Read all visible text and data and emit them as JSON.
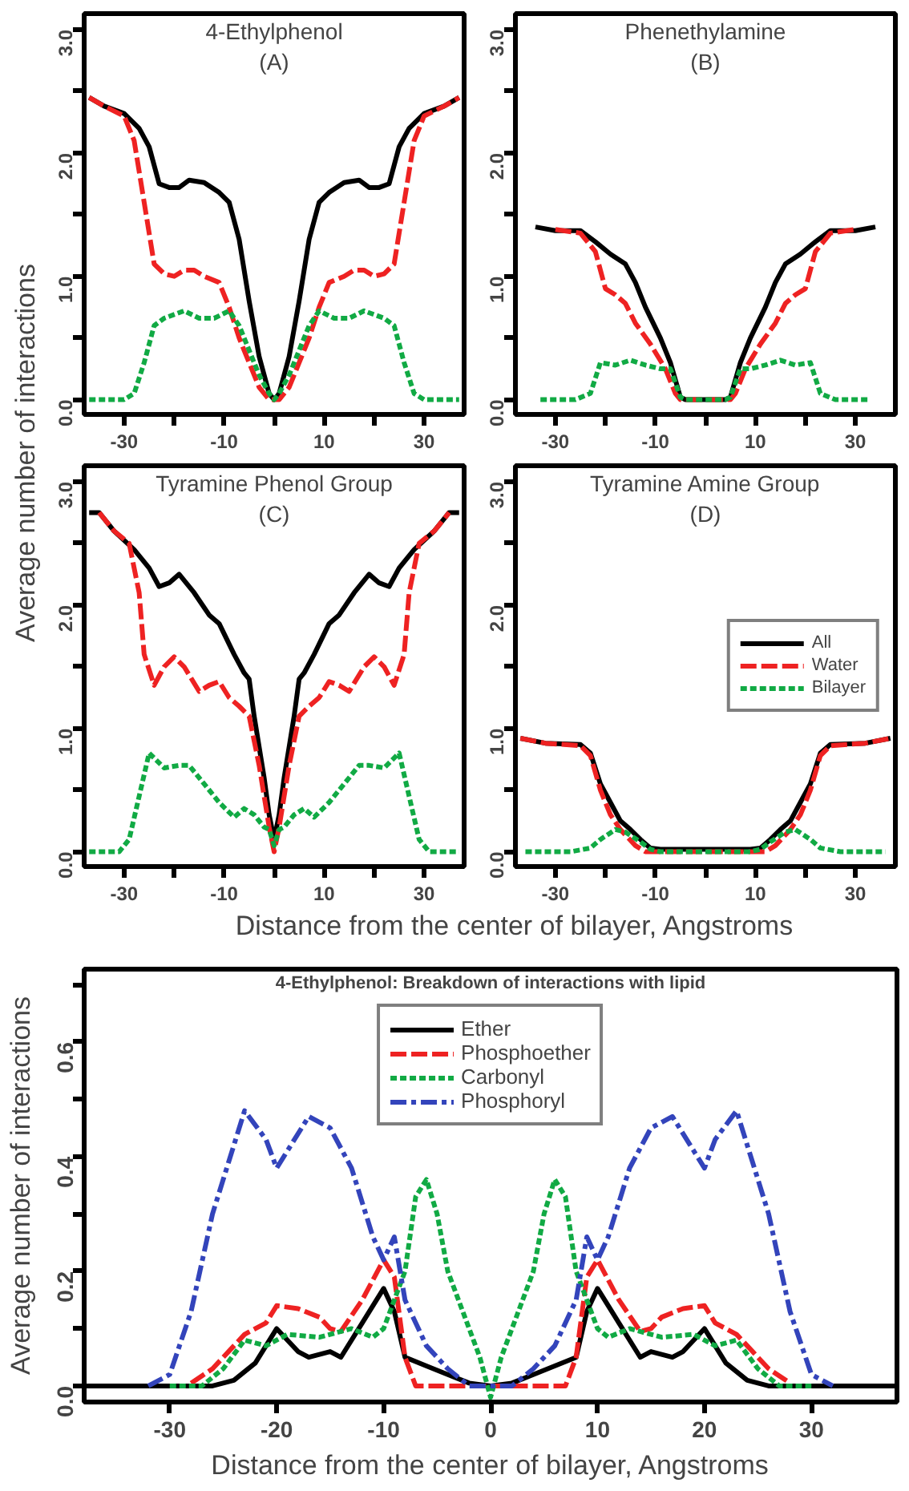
{
  "chart_data": [
    {
      "type": "line",
      "title": "4-Ethylphenol\n(A)",
      "ylabel": "Average number of interactions",
      "xlim": [
        -38,
        38
      ],
      "ylim": [
        -0.12,
        3.13
      ],
      "xticks": [
        -30,
        {
          "value": -20,
          "label": null
        },
        -10,
        {
          "value": 0,
          "label": null
        },
        10,
        {
          "value": 20,
          "label": null
        },
        30
      ],
      "yticks": [
        {
          "value": 0,
          "label": "0.0"
        },
        {
          "value": 0.5,
          "label": null
        },
        {
          "value": 1,
          "label": "1.0"
        },
        {
          "value": 1.5,
          "label": null
        },
        {
          "value": 2,
          "label": "2.0"
        },
        {
          "value": 2.5,
          "label": null
        },
        {
          "value": 3,
          "label": "3.0"
        }
      ],
      "series": [
        {
          "color": "#000000",
          "line_style": "solid",
          "x": [
            -37,
            -34,
            -30,
            -27,
            -25,
            -23,
            -21,
            -19,
            -17,
            -14,
            -11,
            -9,
            -7,
            -5,
            -3,
            -1,
            0,
            1,
            3,
            5,
            7,
            9,
            11,
            14,
            17,
            19,
            21,
            23,
            25,
            27,
            30,
            34,
            37
          ],
          "values": [
            2.45,
            2.38,
            2.32,
            2.2,
            2.05,
            1.75,
            1.72,
            1.72,
            1.78,
            1.76,
            1.68,
            1.6,
            1.3,
            0.8,
            0.35,
            0.05,
            0,
            0.05,
            0.35,
            0.8,
            1.3,
            1.6,
            1.68,
            1.76,
            1.78,
            1.72,
            1.72,
            1.75,
            2.05,
            2.2,
            2.32,
            2.38,
            2.45
          ]
        },
        {
          "color": "#ee2222",
          "line_style": "dashed",
          "x": [
            -37,
            -34,
            -30,
            -28,
            -26,
            -24,
            -22,
            -20,
            -18,
            -16,
            -14,
            -11,
            -9,
            -7,
            -5,
            -3,
            -1,
            0,
            1,
            3,
            5,
            7,
            9,
            11,
            14,
            16,
            18,
            20,
            22,
            24,
            26,
            28,
            30,
            34,
            37
          ],
          "values": [
            2.45,
            2.38,
            2.3,
            2.1,
            1.6,
            1.1,
            1.02,
            1.0,
            1.05,
            1.05,
            1.0,
            0.95,
            0.75,
            0.5,
            0.3,
            0.1,
            0.0,
            0,
            0.0,
            0.1,
            0.3,
            0.5,
            0.75,
            0.95,
            1.0,
            1.05,
            1.05,
            1.0,
            1.02,
            1.1,
            1.6,
            2.1,
            2.3,
            2.38,
            2.45
          ]
        },
        {
          "color": "#11aa44",
          "line_style": "dotted",
          "x": [
            -37,
            -30,
            -28,
            -26,
            -24,
            -22,
            -18,
            -15,
            -12,
            -9,
            -7,
            -5,
            -3,
            -1,
            0,
            1,
            3,
            5,
            7,
            9,
            12,
            15,
            18,
            22,
            24,
            26,
            28,
            30,
            37
          ],
          "values": [
            0,
            0,
            0.05,
            0.3,
            0.6,
            0.66,
            0.72,
            0.66,
            0.66,
            0.72,
            0.6,
            0.4,
            0.2,
            0.05,
            0,
            0.05,
            0.2,
            0.4,
            0.6,
            0.72,
            0.66,
            0.66,
            0.72,
            0.66,
            0.6,
            0.3,
            0.05,
            0,
            0
          ]
        }
      ]
    },
    {
      "type": "line",
      "title": "Phenethylamine\n(B)",
      "xlim": [
        -38,
        38
      ],
      "ylim": [
        -0.12,
        3.13
      ],
      "xticks": [
        -30,
        {
          "value": -20,
          "label": null
        },
        -10,
        {
          "value": 0,
          "label": null
        },
        10,
        {
          "value": 20,
          "label": null
        },
        30
      ],
      "yticks": [
        {
          "value": 0,
          "label": "0.0"
        },
        {
          "value": 0.5,
          "label": null
        },
        {
          "value": 1,
          "label": "1.0"
        },
        {
          "value": 1.5,
          "label": null
        },
        {
          "value": 2,
          "label": "2.0"
        },
        {
          "value": 2.5,
          "label": null
        },
        {
          "value": 3,
          "label": "3.0"
        }
      ],
      "series": [
        {
          "color": "#000000",
          "line_style": "solid",
          "x": [
            -34,
            -30,
            -25,
            -22,
            -19,
            -16,
            -14,
            -12,
            -9,
            -7,
            -5,
            -4,
            0,
            4,
            5,
            7,
            9,
            12,
            14,
            16,
            19,
            22,
            25,
            30,
            34
          ],
          "values": [
            1.4,
            1.37,
            1.37,
            1.28,
            1.18,
            1.1,
            0.95,
            0.75,
            0.5,
            0.3,
            0.02,
            0,
            0,
            0,
            0.02,
            0.3,
            0.5,
            0.75,
            0.95,
            1.1,
            1.18,
            1.28,
            1.37,
            1.37,
            1.4
          ]
        },
        {
          "color": "#ee2222",
          "line_style": "dashed",
          "x": [
            -30,
            -25,
            -22,
            -20,
            -18,
            -16,
            -14,
            -11,
            -8,
            -6,
            -5,
            0,
            5,
            6,
            8,
            11,
            14,
            16,
            18,
            20,
            22,
            25,
            30
          ],
          "values": [
            1.38,
            1.35,
            1.2,
            0.9,
            0.85,
            0.78,
            0.62,
            0.45,
            0.25,
            0.05,
            0,
            0,
            0,
            0.05,
            0.25,
            0.45,
            0.62,
            0.78,
            0.85,
            0.9,
            1.2,
            1.35,
            1.38
          ]
        },
        {
          "color": "#11aa44",
          "line_style": "dotted",
          "x": [
            -33,
            -26,
            -23,
            -21,
            -18,
            -15,
            -12,
            -9,
            -7,
            -5,
            -4,
            0,
            4,
            5,
            7,
            9,
            12,
            15,
            18,
            21,
            23,
            26,
            33
          ],
          "values": [
            0,
            0,
            0.05,
            0.3,
            0.28,
            0.32,
            0.28,
            0.25,
            0.25,
            0.02,
            0,
            0,
            0,
            0.02,
            0.25,
            0.25,
            0.28,
            0.32,
            0.28,
            0.3,
            0.05,
            0,
            0
          ]
        }
      ]
    },
    {
      "type": "line",
      "title": "Tyramine Phenol Group\n(C)",
      "xlabel": "Distance from the center of bilayer, Angstroms",
      "xlim": [
        -38,
        38
      ],
      "ylim": [
        -0.12,
        3.13
      ],
      "xticks": [
        -30,
        {
          "value": -20,
          "label": null
        },
        -10,
        {
          "value": 0,
          "label": null
        },
        10,
        {
          "value": 20,
          "label": null
        },
        30
      ],
      "yticks": [
        {
          "value": 0,
          "label": "0.0"
        },
        {
          "value": 0.5,
          "label": null
        },
        {
          "value": 1,
          "label": "1.0"
        },
        {
          "value": 1.5,
          "label": null
        },
        {
          "value": 2,
          "label": "2.0"
        },
        {
          "value": 2.5,
          "label": null
        },
        {
          "value": 3,
          "label": "3.0"
        }
      ],
      "series": [
        {
          "color": "#000000",
          "line_style": "solid",
          "x": [
            -37,
            -35,
            -32,
            -28,
            -25,
            -23,
            -21,
            -19,
            -16,
            -13,
            -11,
            -8,
            -6,
            -5,
            -4,
            -2,
            -1,
            0,
            1,
            2,
            4,
            5,
            6,
            8,
            11,
            13,
            16,
            19,
            21,
            23,
            25,
            28,
            32,
            35,
            37
          ],
          "values": [
            2.75,
            2.75,
            2.6,
            2.45,
            2.3,
            2.15,
            2.18,
            2.25,
            2.1,
            1.92,
            1.85,
            1.6,
            1.45,
            1.4,
            1.1,
            0.6,
            0.3,
            0.1,
            0.3,
            0.6,
            1.1,
            1.4,
            1.45,
            1.6,
            1.85,
            1.92,
            2.1,
            2.25,
            2.18,
            2.15,
            2.3,
            2.45,
            2.6,
            2.75,
            2.75
          ]
        },
        {
          "color": "#ee2222",
          "line_style": "dashed",
          "x": [
            -35,
            -32,
            -29,
            -27,
            -26,
            -24,
            -22,
            -20,
            -18,
            -15,
            -13,
            -11,
            -9,
            -7,
            -5,
            -3,
            -1,
            0,
            1,
            3,
            5,
            7,
            9,
            11,
            13,
            15,
            18,
            20,
            22,
            24,
            26,
            27,
            29,
            32,
            35
          ],
          "values": [
            2.75,
            2.6,
            2.5,
            2.1,
            1.6,
            1.35,
            1.5,
            1.58,
            1.5,
            1.3,
            1.35,
            1.38,
            1.25,
            1.18,
            1.1,
            0.7,
            0.2,
            0,
            0.2,
            0.7,
            1.1,
            1.18,
            1.25,
            1.38,
            1.35,
            1.3,
            1.5,
            1.58,
            1.5,
            1.35,
            1.6,
            2.1,
            2.5,
            2.6,
            2.75
          ]
        },
        {
          "color": "#11aa44",
          "line_style": "dotted",
          "x": [
            -37,
            -31,
            -29,
            -27,
            -25,
            -22,
            -19,
            -17,
            -14,
            -11,
            -8,
            -6,
            -4,
            -2,
            -1,
            0,
            1,
            2,
            4,
            6,
            8,
            11,
            14,
            17,
            19,
            22,
            25,
            27,
            29,
            31,
            37
          ],
          "values": [
            0,
            0,
            0.1,
            0.45,
            0.8,
            0.68,
            0.7,
            0.7,
            0.55,
            0.4,
            0.28,
            0.35,
            0.3,
            0.2,
            0.18,
            0.05,
            0.18,
            0.2,
            0.3,
            0.35,
            0.28,
            0.4,
            0.55,
            0.7,
            0.7,
            0.68,
            0.8,
            0.45,
            0.1,
            0,
            0
          ]
        }
      ]
    },
    {
      "type": "line",
      "title": "Tyramine Amine Group\n(D)",
      "legend": "right",
      "xlim": [
        -38,
        38
      ],
      "ylim": [
        -0.12,
        3.13
      ],
      "xticks": [
        -30,
        {
          "value": -20,
          "label": null
        },
        -10,
        {
          "value": 0,
          "label": null
        },
        10,
        {
          "value": 20,
          "label": null
        },
        30
      ],
      "yticks": [
        {
          "value": 0,
          "label": "0.0"
        },
        {
          "value": 0.5,
          "label": null
        },
        {
          "value": 1,
          "label": "1.0"
        },
        {
          "value": 1.5,
          "label": null
        },
        {
          "value": 2,
          "label": "2.0"
        },
        {
          "value": 2.5,
          "label": null
        },
        {
          "value": 3,
          "label": "3.0"
        }
      ],
      "series": [
        {
          "name": "All",
          "color": "#000000",
          "line_style": "solid",
          "x": [
            -37,
            -32,
            -25,
            -23,
            -21,
            -19,
            -17,
            -15,
            -13,
            -11,
            -9,
            0,
            9,
            11,
            13,
            15,
            17,
            19,
            21,
            23,
            25,
            32,
            37
          ],
          "values": [
            0.92,
            0.88,
            0.87,
            0.8,
            0.55,
            0.4,
            0.25,
            0.18,
            0.1,
            0.03,
            0.02,
            0.02,
            0.02,
            0.03,
            0.1,
            0.18,
            0.25,
            0.4,
            0.55,
            0.8,
            0.87,
            0.88,
            0.92
          ]
        },
        {
          "name": "Water",
          "color": "#ee2222",
          "line_style": "dashed",
          "x": [
            -37,
            -32,
            -25,
            -23,
            -21,
            -19,
            -17,
            -14,
            -12,
            0,
            12,
            14,
            17,
            19,
            21,
            23,
            25,
            32,
            37
          ],
          "values": [
            0.92,
            0.88,
            0.86,
            0.78,
            0.5,
            0.3,
            0.18,
            0.05,
            0,
            0,
            0,
            0.05,
            0.18,
            0.3,
            0.5,
            0.78,
            0.86,
            0.88,
            0.92
          ]
        },
        {
          "name": "Bilayer",
          "color": "#11aa44",
          "line_style": "dotted",
          "x": [
            -36,
            -27,
            -23,
            -21,
            -18,
            -16,
            -13,
            -11,
            -9,
            0,
            9,
            11,
            13,
            16,
            18,
            21,
            23,
            27,
            36
          ],
          "values": [
            0,
            0,
            0.03,
            0.1,
            0.18,
            0.16,
            0.08,
            0.02,
            0,
            0,
            0,
            0.02,
            0.08,
            0.16,
            0.18,
            0.1,
            0.03,
            0,
            0
          ]
        }
      ]
    },
    {
      "type": "line",
      "title": "4-Ethylphenol: Breakdown of interactions with lipid",
      "xlabel": "Distance from the center of bilayer, Angstroms",
      "ylabel": "Average number of interactions",
      "legend": "top",
      "xlim": [
        -38,
        38
      ],
      "ylim": [
        -0.028,
        0.727
      ],
      "xticks": [
        -30,
        -20,
        -10,
        0,
        10,
        20,
        30
      ],
      "yticks": [
        {
          "value": 0,
          "label": "0.0"
        },
        {
          "value": 0.1,
          "label": null
        },
        {
          "value": 0.2,
          "label": "0.2"
        },
        {
          "value": 0.3,
          "label": null
        },
        {
          "value": 0.4,
          "label": "0.4"
        },
        {
          "value": 0.5,
          "label": null
        },
        {
          "value": 0.6,
          "label": "0.6"
        },
        {
          "value": 0.7,
          "label": null
        }
      ],
      "series": [
        {
          "name": "Ether",
          "color": "#000000",
          "line_style": "solid",
          "x": [
            -38,
            -26,
            -24,
            -22,
            -20,
            -18,
            -17,
            -15,
            -14,
            -12,
            -10,
            -9,
            -8,
            -6,
            -4,
            -2,
            0,
            2,
            4,
            6,
            8,
            9,
            10,
            12,
            14,
            15,
            17,
            18,
            20,
            22,
            24,
            26,
            38
          ],
          "values": [
            0,
            0,
            0.01,
            0.04,
            0.1,
            0.06,
            0.05,
            0.06,
            0.05,
            0.11,
            0.17,
            0.13,
            0.05,
            0.035,
            0.02,
            0.005,
            0,
            0.005,
            0.02,
            0.035,
            0.05,
            0.13,
            0.17,
            0.11,
            0.05,
            0.06,
            0.05,
            0.06,
            0.1,
            0.04,
            0.01,
            0,
            0
          ]
        },
        {
          "name": "Phosphoether",
          "color": "#ee2222",
          "line_style": "dashed",
          "x": [
            -28,
            -26,
            -23,
            -21,
            -20,
            -18,
            -16,
            -15,
            -14,
            -12,
            -10,
            -9,
            -8,
            -7,
            0,
            7,
            8,
            9,
            10,
            12,
            14,
            15,
            16,
            18,
            20,
            21,
            23,
            26,
            28
          ],
          "values": [
            0.005,
            0.03,
            0.09,
            0.11,
            0.14,
            0.135,
            0.12,
            0.1,
            0.095,
            0.15,
            0.22,
            0.19,
            0.05,
            0,
            0,
            0,
            0.05,
            0.19,
            0.22,
            0.15,
            0.095,
            0.1,
            0.12,
            0.135,
            0.14,
            0.11,
            0.09,
            0.03,
            0.005
          ]
        },
        {
          "name": "Carbonyl",
          "color": "#11aa44",
          "line_style": "dotted",
          "x": [
            -30,
            -27,
            -25,
            -23,
            -21,
            -19,
            -16,
            -13,
            -11,
            -10,
            -8,
            -7,
            -6,
            -5,
            -4,
            -2,
            -1,
            0,
            1,
            2,
            4,
            5,
            6,
            7,
            8,
            10,
            11,
            13,
            16,
            19,
            21,
            23,
            25,
            27,
            30
          ],
          "values": [
            0,
            0,
            0.03,
            0.08,
            0.07,
            0.09,
            0.085,
            0.1,
            0.085,
            0.1,
            0.2,
            0.33,
            0.36,
            0.3,
            0.2,
            0.1,
            0.05,
            -0.02,
            0.05,
            0.1,
            0.2,
            0.3,
            0.36,
            0.33,
            0.2,
            0.1,
            0.085,
            0.1,
            0.085,
            0.09,
            0.07,
            0.08,
            0.03,
            0,
            0
          ]
        },
        {
          "name": "Phosphoryl",
          "color": "#3344bb",
          "line_style": "dashdot",
          "x": [
            -32,
            -30,
            -28,
            -26,
            -24,
            -23,
            -21,
            -20,
            -19,
            -17,
            -15,
            -13,
            -11,
            -10,
            -9,
            -8,
            -6,
            -4,
            -2,
            0,
            2,
            4,
            6,
            8,
            9,
            10,
            11,
            13,
            15,
            17,
            19,
            20,
            21,
            23,
            24,
            26,
            28,
            30,
            32
          ],
          "values": [
            0,
            0.02,
            0.13,
            0.3,
            0.42,
            0.48,
            0.43,
            0.38,
            0.41,
            0.47,
            0.45,
            0.38,
            0.26,
            0.22,
            0.26,
            0.15,
            0.07,
            0.03,
            0,
            0,
            0,
            0.03,
            0.07,
            0.15,
            0.26,
            0.22,
            0.26,
            0.38,
            0.45,
            0.47,
            0.41,
            0.38,
            0.43,
            0.48,
            0.42,
            0.3,
            0.13,
            0.02,
            0
          ]
        }
      ]
    }
  ]
}
